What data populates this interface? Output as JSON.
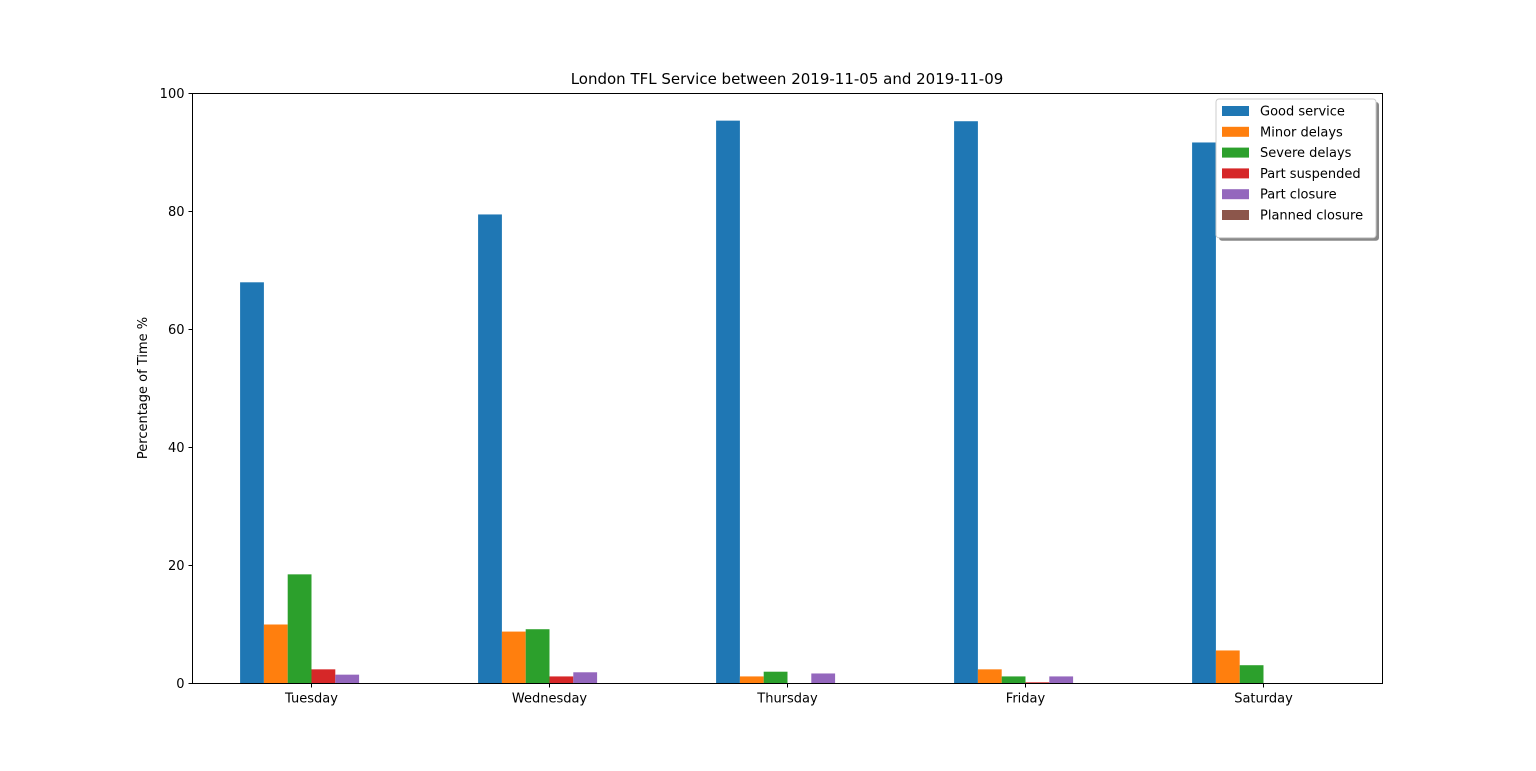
{
  "chart_data": {
    "type": "bar",
    "title": "London TFL Service between 2019-11-05 and 2019-11-09",
    "xlabel": "",
    "ylabel": "Percentage of Time %",
    "ylim": [
      0,
      100
    ],
    "yticks": [
      0,
      20,
      40,
      60,
      80,
      100
    ],
    "grid": false,
    "legend_position": "top-right",
    "categories": [
      "Tuesday",
      "Wednesday",
      "Thursday",
      "Friday",
      "Saturday"
    ],
    "series": [
      {
        "name": "Good service",
        "color": "#1f77b4",
        "values": [
          68.0,
          79.5,
          95.4,
          95.3,
          91.7
        ]
      },
      {
        "name": "Minor delays",
        "color": "#ff7f0e",
        "values": [
          10.0,
          8.8,
          1.2,
          2.4,
          5.6
        ]
      },
      {
        "name": "Severe delays",
        "color": "#2ca02c",
        "values": [
          18.5,
          9.2,
          2.0,
          1.2,
          3.1
        ]
      },
      {
        "name": "Part suspended",
        "color": "#d62728",
        "values": [
          2.4,
          1.2,
          0,
          0.2,
          0
        ]
      },
      {
        "name": "Part closure",
        "color": "#9467bd",
        "values": [
          1.5,
          1.9,
          1.7,
          1.2,
          0
        ]
      },
      {
        "name": "Planned closure",
        "color": "#8c564b",
        "values": [
          0,
          0,
          0,
          0,
          0
        ]
      }
    ]
  }
}
